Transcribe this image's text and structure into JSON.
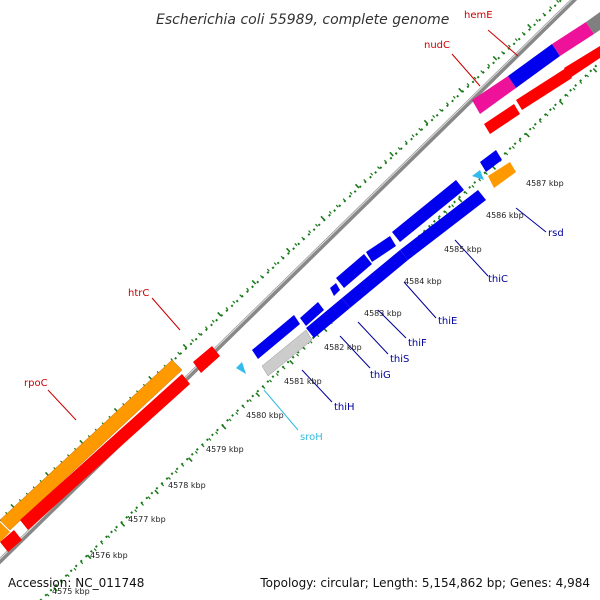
{
  "title": "Escherichia coli 55989, complete genome",
  "accession": "Accession: NC_011748",
  "topology": "Topology: circular; Length: 5,154,862 bp; Genes: 4,984",
  "ticks": [
    "4575 kbp",
    "4576 kbp",
    "4577 kbp",
    "4578 kbp",
    "4579 kbp",
    "4580 kbp",
    "4581 kbp",
    "4582 kbp",
    "4583 kbp",
    "4584 kbp",
    "4585 kbp",
    "4586 kbp",
    "4587 kbp"
  ],
  "genes": [
    {
      "name": "hemE",
      "color": "#cc0000"
    },
    {
      "name": "nudC",
      "color": "#cc0000"
    },
    {
      "name": "rsd",
      "color": "#000099"
    },
    {
      "name": "thiC",
      "color": "#000099"
    },
    {
      "name": "thiE",
      "color": "#000099"
    },
    {
      "name": "thiF",
      "color": "#000099"
    },
    {
      "name": "thiS",
      "color": "#000099"
    },
    {
      "name": "thiG",
      "color": "#000099"
    },
    {
      "name": "thiH",
      "color": "#000099"
    },
    {
      "name": "sroH",
      "color": "#33bbdd"
    },
    {
      "name": "htrC",
      "color": "#cc0000"
    },
    {
      "name": "rpoC",
      "color": "#cc0000"
    }
  ],
  "colors": {
    "orange": "#ff9900",
    "red": "#ff0000",
    "blue": "#0000ee",
    "magenta": "#ee1199",
    "grey": "#808080",
    "light_blue": "#33bbee",
    "tick_green": "#1a7a1a"
  }
}
